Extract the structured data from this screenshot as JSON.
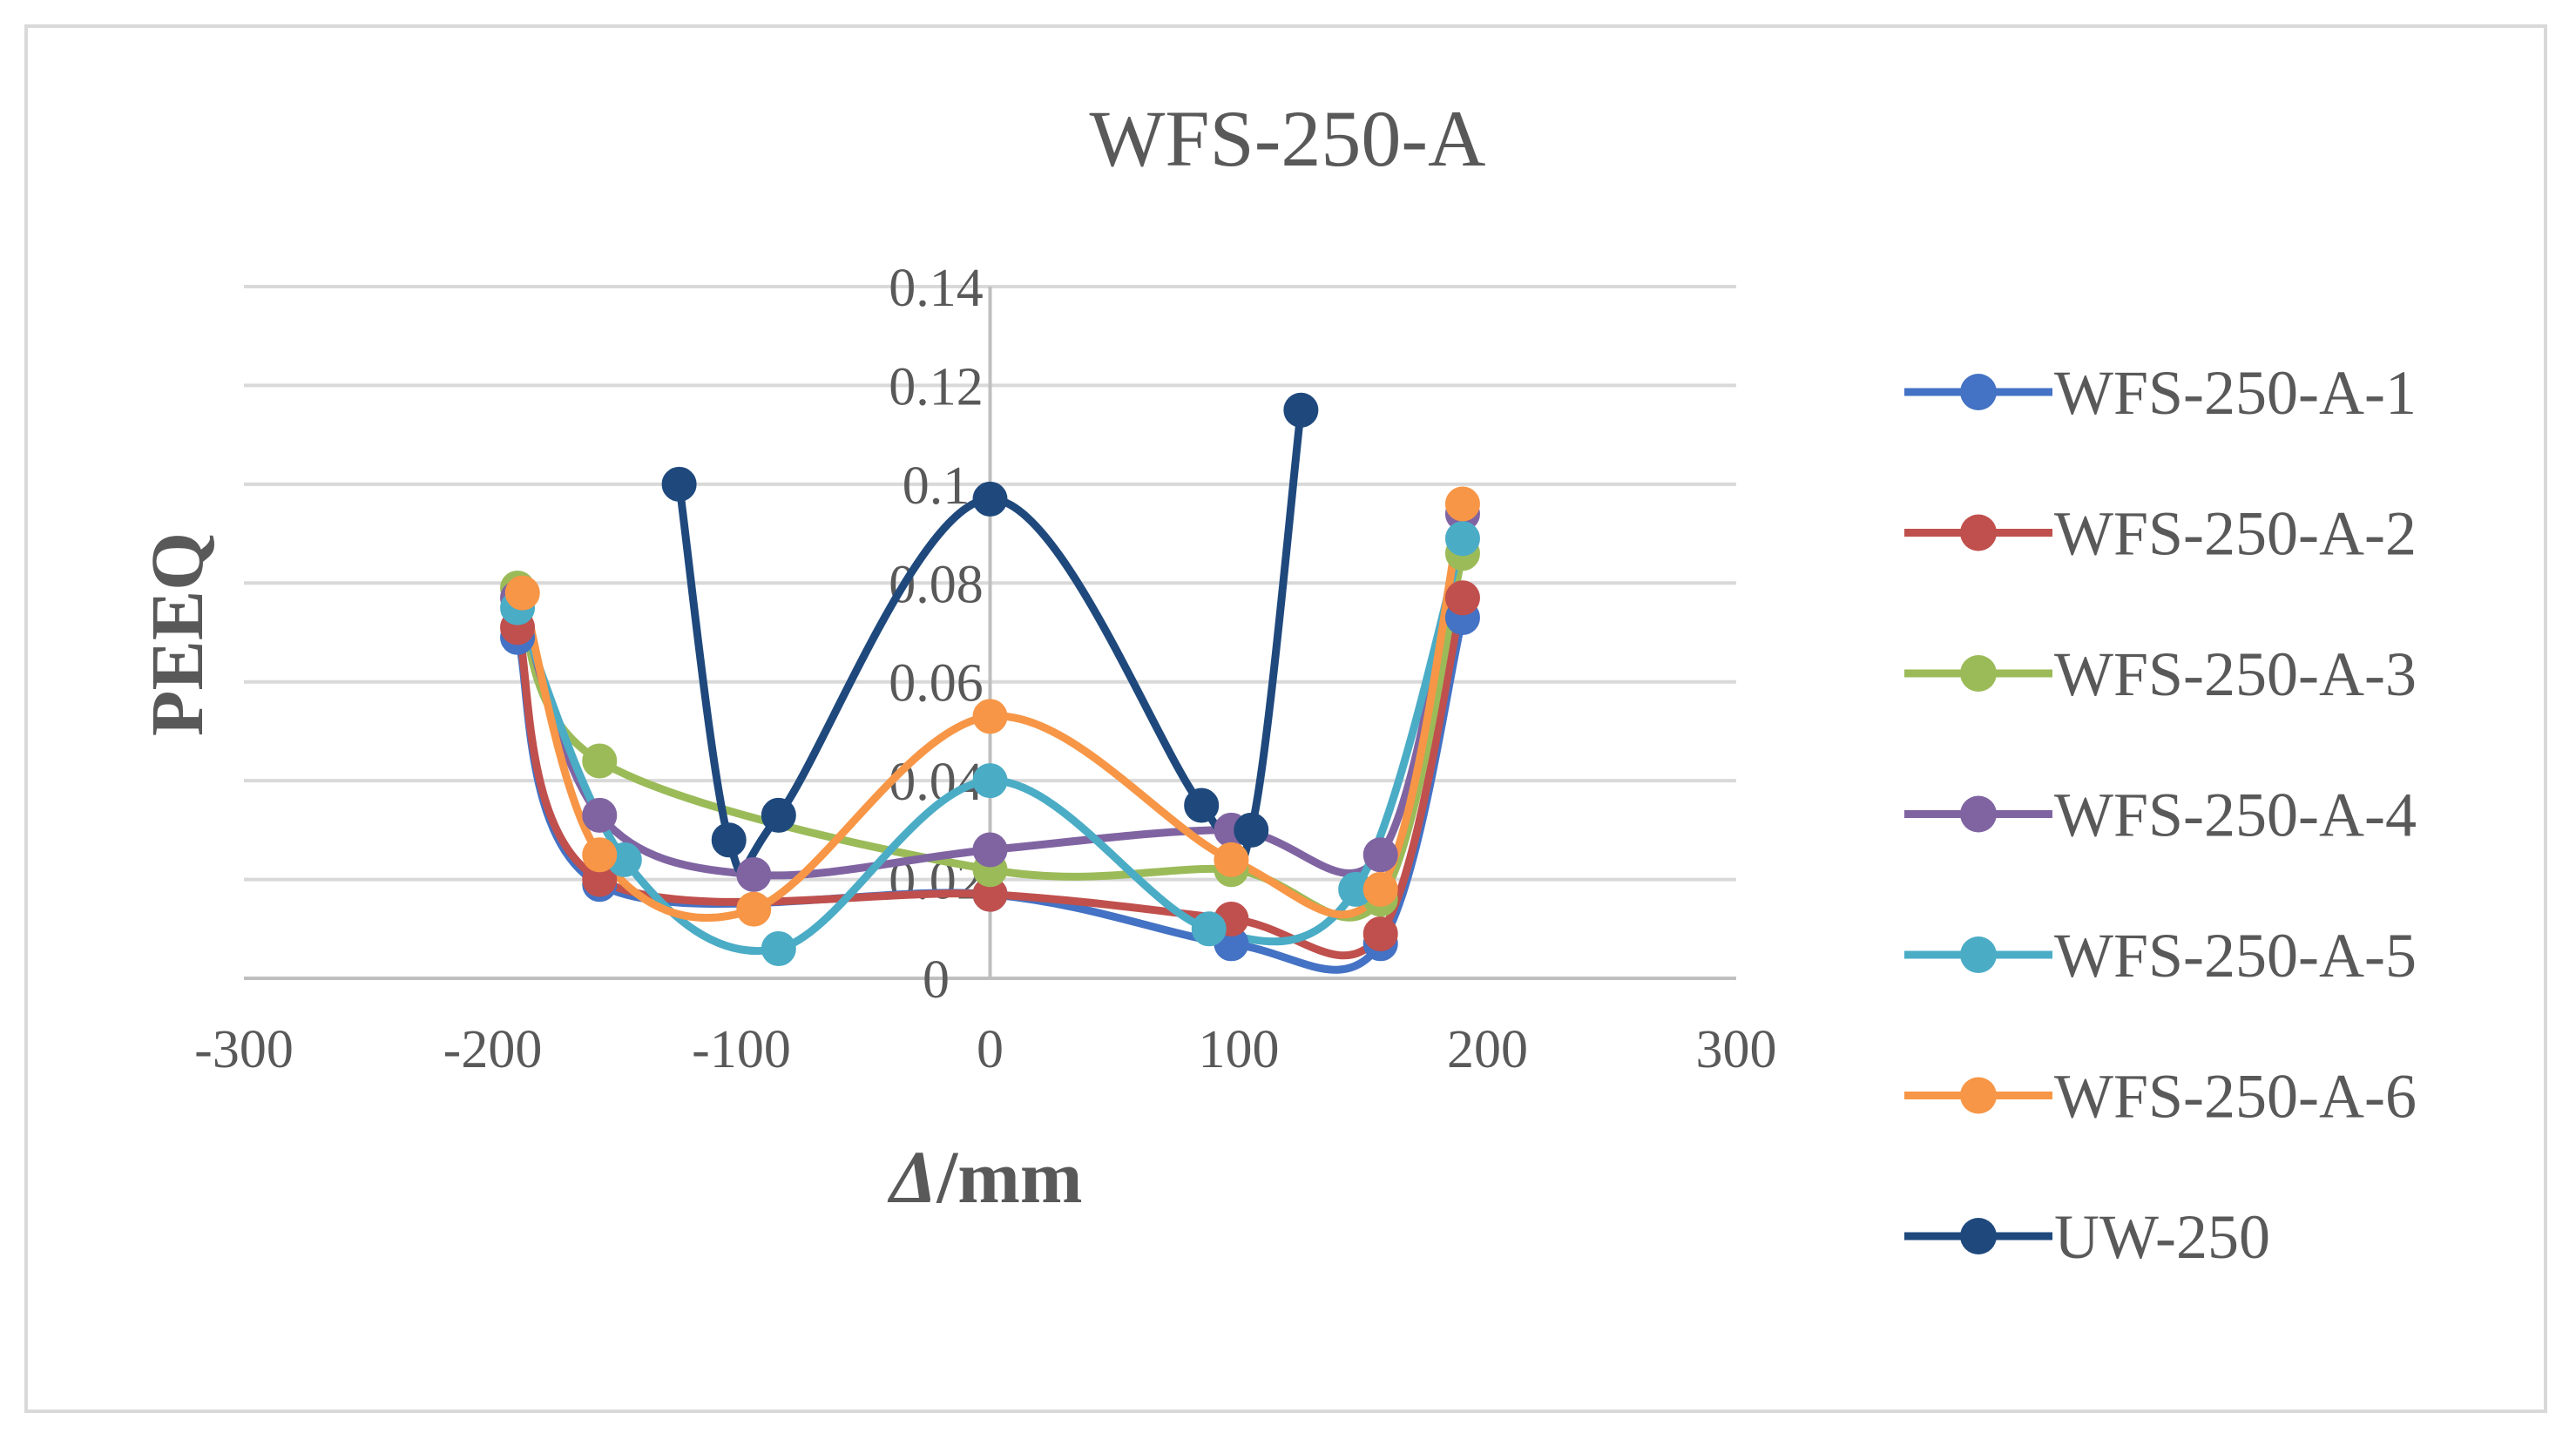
{
  "chart_data": {
    "type": "scatter",
    "subtype": "smooth-line-with-markers",
    "title": "WFS-250-A",
    "xlabel_italic": "Δ",
    "xlabel_rest": "/mm",
    "ylabel": "PEEQ",
    "xlim": [
      -300,
      300
    ],
    "ylim": [
      0,
      0.14
    ],
    "x_ticks": [
      "-300",
      "-200",
      "-100",
      "0",
      "100",
      "200",
      "300"
    ],
    "y_ticks": [
      "0",
      "0.02",
      "0.04",
      "0.06",
      "0.08",
      "0.1",
      "0.12",
      "0.14"
    ],
    "grid": "horizontal",
    "legend_position": "right",
    "series": [
      {
        "name": "WFS-250-A-1",
        "color": "#4472C4",
        "x": [
          -190,
          -157,
          0,
          97,
          157,
          190
        ],
        "y": [
          0.069,
          0.019,
          0.017,
          0.007,
          0.007,
          0.073
        ]
      },
      {
        "name": "WFS-250-A-2",
        "color": "#C0504D",
        "x": [
          -190,
          -157,
          0,
          97,
          157,
          190
        ],
        "y": [
          0.071,
          0.02,
          0.017,
          0.012,
          0.009,
          0.077
        ]
      },
      {
        "name": "WFS-250-A-3",
        "color": "#9BBB59",
        "x": [
          -190,
          -157,
          0,
          97,
          157,
          190
        ],
        "y": [
          0.079,
          0.044,
          0.022,
          0.022,
          0.016,
          0.086
        ]
      },
      {
        "name": "WFS-250-A-4",
        "color": "#8064A2",
        "x": [
          -190,
          -157,
          -95,
          0,
          97,
          157,
          190
        ],
        "y": [
          0.077,
          0.033,
          0.021,
          0.026,
          0.03,
          0.025,
          0.094
        ]
      },
      {
        "name": "WFS-250-A-5",
        "color": "#4BACC6",
        "x": [
          -190,
          -147,
          -85,
          0,
          88,
          147,
          190
        ],
        "y": [
          0.075,
          0.024,
          0.006,
          0.04,
          0.01,
          0.018,
          0.089
        ]
      },
      {
        "name": "WFS-250-A-6",
        "color": "#F79646",
        "x": [
          -188,
          -157,
          -95,
          0,
          97,
          157,
          190
        ],
        "y": [
          0.078,
          0.025,
          0.014,
          0.053,
          0.024,
          0.018,
          0.096
        ]
      },
      {
        "name": "UW-250",
        "color": "#1F497D",
        "x": [
          -125,
          -105,
          -85,
          0,
          85,
          105,
          125
        ],
        "y": [
          0.1,
          0.028,
          0.033,
          0.097,
          0.035,
          0.03,
          0.115
        ]
      }
    ]
  }
}
